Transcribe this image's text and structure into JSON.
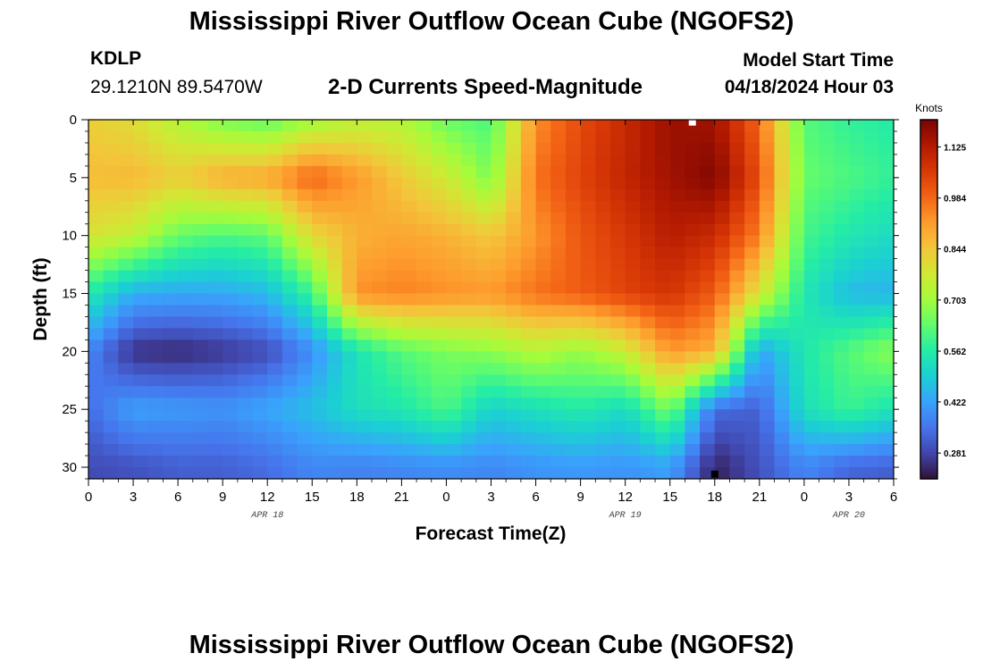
{
  "page": {
    "title": "Mississippi River Outflow Ocean Cube (NGOFS2)",
    "title_repeat": "Mississippi River Outflow Ocean Cube (NGOFS2)",
    "station_id": "KDLP",
    "station_coords": "29.1210N  89.5470W",
    "subtitle": "2-D Currents Speed-Magnitude",
    "model_start_label": "Model Start Time",
    "model_start_value": "04/18/2024 Hour 03"
  },
  "chart_data": {
    "type": "heatmap",
    "title": "2-D Currents Speed-Magnitude",
    "xlabel": "Forecast Time(Z)",
    "ylabel": "Depth (ft)",
    "x_ticks": [
      "0",
      "3",
      "6",
      "9",
      "12",
      "15",
      "18",
      "21",
      "0",
      "3",
      "6",
      "9",
      "12",
      "15",
      "18",
      "21",
      "0",
      "3",
      "6"
    ],
    "date_labels": [
      {
        "label": "APR 18",
        "at_hours": 12
      },
      {
        "label": "APR 19",
        "at_hours": 36
      },
      {
        "label": "APR 20",
        "at_hours": 51
      }
    ],
    "x_range_hours": [
      0,
      54
    ],
    "y_ticks": [
      "0",
      "5",
      "10",
      "15",
      "20",
      "25",
      "30"
    ],
    "ylim": [
      0,
      31
    ],
    "y_inverted": true,
    "colorbar": {
      "title": "Knots",
      "ticks": [
        "1.125",
        "0.984",
        "0.844",
        "0.703",
        "0.562",
        "0.422",
        "0.281"
      ],
      "range": [
        0.21,
        1.2
      ],
      "colormap": [
        "#30123b",
        "#4145ab",
        "#4675ed",
        "#39a2fc",
        "#1bcfd4",
        "#24eca6",
        "#61fc6c",
        "#a4fc3b",
        "#d1e834",
        "#f3c63a",
        "#fe9b2d",
        "#f36315",
        "#d93806",
        "#b11901",
        "#7a0402"
      ]
    },
    "field": {
      "hours": [
        0,
        3,
        6,
        9,
        12,
        15,
        18,
        21,
        24,
        27,
        30,
        33,
        36,
        39,
        42,
        45,
        48,
        51,
        54
      ],
      "depths_ft": [
        0,
        5,
        10,
        15,
        20,
        25,
        30
      ],
      "speed_knots": [
        [
          0.83,
          0.8,
          0.73,
          0.66,
          0.63,
          0.7,
          0.74,
          0.73,
          0.64,
          0.61,
          0.93,
          1.03,
          1.09,
          1.16,
          1.15,
          0.98,
          0.62,
          0.58,
          0.56
        ],
        [
          0.86,
          0.87,
          0.83,
          0.89,
          0.9,
          0.99,
          0.92,
          0.84,
          0.77,
          0.66,
          0.97,
          1.04,
          1.1,
          1.15,
          1.19,
          1.02,
          0.64,
          0.61,
          0.58
        ],
        [
          0.79,
          0.75,
          0.64,
          0.61,
          0.63,
          0.81,
          0.88,
          0.9,
          0.88,
          0.84,
          0.92,
          1.01,
          1.06,
          1.12,
          1.09,
          0.95,
          0.6,
          0.55,
          0.52
        ],
        [
          0.56,
          0.44,
          0.43,
          0.43,
          0.46,
          0.59,
          0.93,
          0.95,
          0.93,
          0.92,
          0.97,
          1.0,
          1.04,
          1.07,
          1.0,
          0.78,
          0.55,
          0.46,
          0.45
        ],
        [
          0.38,
          0.25,
          0.24,
          0.26,
          0.29,
          0.39,
          0.54,
          0.62,
          0.66,
          0.68,
          0.73,
          0.69,
          0.76,
          0.92,
          0.88,
          0.42,
          0.55,
          0.62,
          0.68
        ],
        [
          0.34,
          0.42,
          0.41,
          0.4,
          0.43,
          0.47,
          0.53,
          0.55,
          0.61,
          0.5,
          0.53,
          0.56,
          0.52,
          0.66,
          0.34,
          0.32,
          0.53,
          0.59,
          0.54
        ],
        [
          0.29,
          0.3,
          0.32,
          0.32,
          0.34,
          0.38,
          0.37,
          0.38,
          0.39,
          0.38,
          0.4,
          0.41,
          0.4,
          0.42,
          0.23,
          0.3,
          0.38,
          0.33,
          0.32
        ]
      ]
    },
    "markers": [
      {
        "name": "surface-marker",
        "hour": 40.5,
        "depth_ft": 0.2,
        "color": "#ffffff"
      },
      {
        "name": "bottom-marker",
        "hour": 42,
        "depth_ft": 30.6,
        "color": "#000000"
      }
    ]
  }
}
